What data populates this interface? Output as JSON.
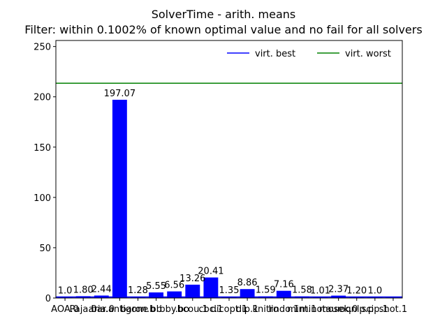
{
  "chart_data": {
    "type": "bar",
    "title": "SolverTime - arith. means",
    "subtitle": "Filter: within 0.1002% of known optimal value and no fail for all solvers",
    "xlabel": "",
    "ylabel": "",
    "categories": [
      "AOA.0",
      "Paja.0",
      "aria.0",
      "bar.antigone",
      "baron.b",
      "bb",
      "bby.bo",
      "bcou.1",
      "cbc.1",
      "dicopt.1",
      "dip.1",
      "knitro",
      "lindo.1",
      "mint.1",
      "minotaur",
      "mosek.0",
      "oqnlp.p",
      "scip.1",
      "shot.1"
    ],
    "values": [
      1.0,
      1.8,
      2.44,
      197.07,
      1.28,
      5.55,
      6.56,
      13.26,
      20.41,
      1.35,
      8.86,
      1.59,
      7.16,
      1.58,
      1.01,
      2.37,
      1.2,
      1.0,
      1.0
    ],
    "data_labels": [
      "1.0",
      "1.80",
      "2.44",
      "197.07",
      "1.28",
      "5.55",
      "6.56",
      "13.26",
      "20.41",
      "1.35",
      "8.86",
      "1.59",
      "7.16",
      "1.58",
      "1.01",
      "2.37",
      "1.20",
      "1.0",
      ""
    ],
    "ylim": [
      0,
      256
    ],
    "yticks": [
      0,
      50,
      100,
      150,
      200,
      250
    ],
    "reference_lines": [
      {
        "name": "virt. best",
        "value": 1.0,
        "color": "#0000ff"
      },
      {
        "name": "virt. worst",
        "value": 213.5,
        "color": "#008000"
      }
    ],
    "bar_color": "#0000ff",
    "legend_position": "top-right",
    "grid": false
  }
}
